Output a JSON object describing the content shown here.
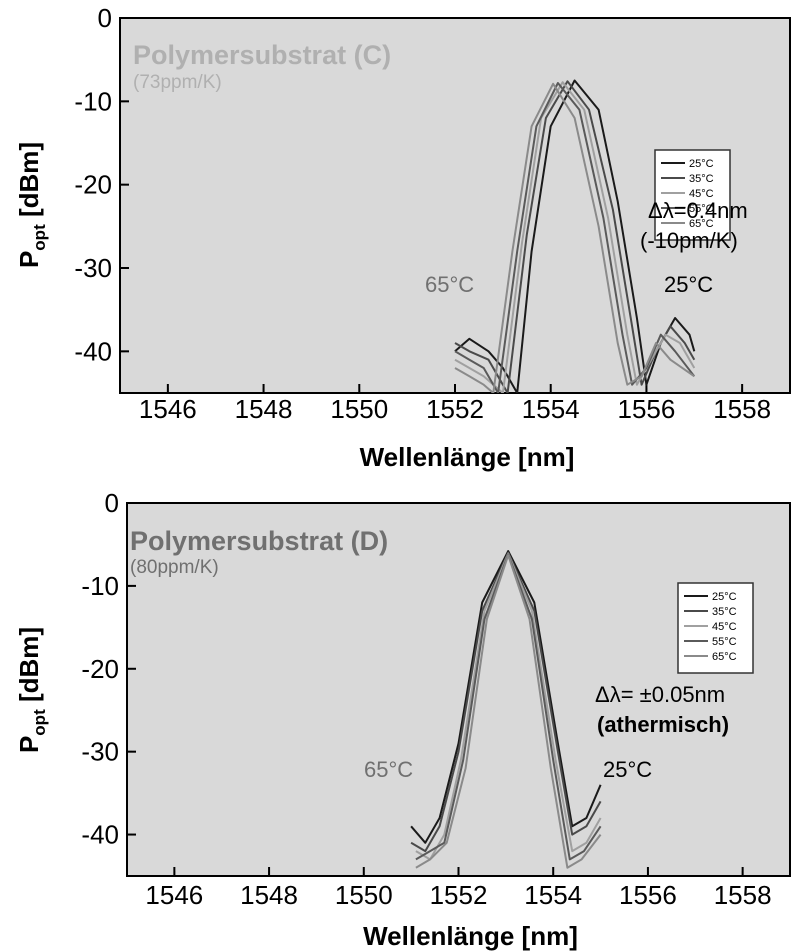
{
  "chart_data": [
    {
      "type": "line",
      "title": "Polymersubstrat (C)",
      "subtitle": "(73ppm/K)",
      "xlabel": "Wellenlänge [nm]",
      "ylabel_main": "P",
      "ylabel_sub": "opt",
      "ylabel_unit": " [dBm]",
      "xlim": [
        1545,
        1559
      ],
      "ylim": [
        -45,
        0
      ],
      "xticks": [
        1546,
        1548,
        1550,
        1552,
        1554,
        1556,
        1558
      ],
      "yticks": [
        0,
        -10,
        -20,
        -30,
        -40
      ],
      "legend_position": "top-right",
      "colors": {
        "plot_bg": "#d9d9d9",
        "title": "#b0b0b0",
        "annotation_left": "#707070",
        "annotation_right": "#000000"
      },
      "annotations": {
        "shift": "Δλ=0.4nm",
        "rate": "(-10pm/K)",
        "rate_bold": false,
        "left_temp": "65°C",
        "right_temp": "25°C"
      },
      "series": [
        {
          "name": "25°C",
          "color": "#1a1a1a",
          "points": [
            [
              1552.0,
              -40
            ],
            [
              1552.3,
              -38.5
            ],
            [
              1552.7,
              -40
            ],
            [
              1553.0,
              -42
            ],
            [
              1553.3,
              -45
            ],
            [
              1553.6,
              -28
            ],
            [
              1554.0,
              -13
            ],
            [
              1554.5,
              -7.5
            ],
            [
              1555.0,
              -11
            ],
            [
              1555.4,
              -22
            ],
            [
              1555.8,
              -36
            ],
            [
              1556.0,
              -44
            ],
            [
              1556.3,
              -39
            ],
            [
              1556.6,
              -36
            ],
            [
              1556.9,
              -38
            ],
            [
              1557.0,
              -40
            ]
          ]
        },
        {
          "name": "35°C",
          "color": "#4a4a4a",
          "points": [
            [
              1552.0,
              -39
            ],
            [
              1552.3,
              -40
            ],
            [
              1552.7,
              -41
            ],
            [
              1553.1,
              -45
            ],
            [
              1553.5,
              -26
            ],
            [
              1553.9,
              -12
            ],
            [
              1554.35,
              -7.6
            ],
            [
              1554.8,
              -11
            ],
            [
              1555.3,
              -23
            ],
            [
              1555.7,
              -37
            ],
            [
              1555.9,
              -44
            ],
            [
              1556.2,
              -40
            ],
            [
              1556.5,
              -37
            ],
            [
              1556.8,
              -39
            ],
            [
              1557.0,
              -41
            ]
          ]
        },
        {
          "name": "45°C",
          "color": "#a0a0a0",
          "points": [
            [
              1552.0,
              -41
            ],
            [
              1552.3,
              -42
            ],
            [
              1552.6,
              -43
            ],
            [
              1553.0,
              -45
            ],
            [
              1553.4,
              -27
            ],
            [
              1553.8,
              -12
            ],
            [
              1554.25,
              -7.7
            ],
            [
              1554.7,
              -11
            ],
            [
              1555.2,
              -24
            ],
            [
              1555.6,
              -38
            ],
            [
              1555.8,
              -44
            ],
            [
              1556.1,
              -41
            ],
            [
              1556.4,
              -38
            ],
            [
              1556.7,
              -39
            ],
            [
              1557.0,
              -42
            ]
          ]
        },
        {
          "name": "55°C",
          "color": "#5a5a5a",
          "points": [
            [
              1552.0,
              -40
            ],
            [
              1552.3,
              -41
            ],
            [
              1552.6,
              -42
            ],
            [
              1552.9,
              -45
            ],
            [
              1553.3,
              -28
            ],
            [
              1553.7,
              -13
            ],
            [
              1554.15,
              -7.8
            ],
            [
              1554.6,
              -11
            ],
            [
              1555.1,
              -24
            ],
            [
              1555.5,
              -38
            ],
            [
              1555.7,
              -44
            ],
            [
              1556.0,
              -42
            ],
            [
              1556.3,
              -38
            ],
            [
              1556.6,
              -40
            ],
            [
              1557.0,
              -43
            ]
          ]
        },
        {
          "name": "65°C",
          "color": "#8a8a8a",
          "points": [
            [
              1552.0,
              -42
            ],
            [
              1552.3,
              -43
            ],
            [
              1552.6,
              -44
            ],
            [
              1552.8,
              -45
            ],
            [
              1553.2,
              -28
            ],
            [
              1553.6,
              -13
            ],
            [
              1554.05,
              -7.9
            ],
            [
              1554.5,
              -12
            ],
            [
              1555.0,
              -25
            ],
            [
              1555.4,
              -39
            ],
            [
              1555.6,
              -44
            ],
            [
              1555.9,
              -43
            ],
            [
              1556.2,
              -39
            ],
            [
              1556.5,
              -41
            ],
            [
              1557.0,
              -43
            ]
          ]
        }
      ]
    },
    {
      "type": "line",
      "title": "Polymersubstrat (D)",
      "subtitle": "(80ppm/K)",
      "xlabel": "Wellenlänge [nm]",
      "ylabel_main": "P",
      "ylabel_sub": "opt",
      "ylabel_unit": " [dBm]",
      "xlim": [
        1545,
        1559
      ],
      "ylim": [
        -45,
        0
      ],
      "xticks": [
        1546,
        1548,
        1550,
        1552,
        1554,
        1556,
        1558
      ],
      "yticks": [
        0,
        -10,
        -20,
        -30,
        -40
      ],
      "legend_position": "top-right",
      "colors": {
        "plot_bg": "#d9d9d9",
        "title": "#707070",
        "annotation_left": "#707070",
        "annotation_right": "#000000"
      },
      "annotations": {
        "shift": "Δλ= ±0.05nm",
        "rate": "(athermisch)",
        "rate_bold": true,
        "left_temp": "65°C",
        "right_temp": "25°C"
      },
      "series": [
        {
          "name": "25°C",
          "color": "#1a1a1a",
          "points": [
            [
              1551.0,
              -39
            ],
            [
              1551.3,
              -41
            ],
            [
              1551.6,
              -38
            ],
            [
              1552.0,
              -29
            ],
            [
              1552.5,
              -12
            ],
            [
              1553.05,
              -5.8
            ],
            [
              1553.6,
              -12
            ],
            [
              1554.1,
              -29
            ],
            [
              1554.4,
              -39
            ],
            [
              1554.7,
              -38
            ],
            [
              1555.0,
              -34
            ]
          ]
        },
        {
          "name": "35°C",
          "color": "#4a4a4a",
          "points": [
            [
              1551.0,
              -41
            ],
            [
              1551.3,
              -42
            ],
            [
              1551.6,
              -39
            ],
            [
              1552.0,
              -30
            ],
            [
              1552.5,
              -13
            ],
            [
              1553.05,
              -6
            ],
            [
              1553.6,
              -13
            ],
            [
              1554.1,
              -30
            ],
            [
              1554.4,
              -40
            ],
            [
              1554.7,
              -39
            ],
            [
              1555.0,
              -36
            ]
          ]
        },
        {
          "name": "45°C",
          "color": "#a0a0a0",
          "points": [
            [
              1551.1,
              -42
            ],
            [
              1551.4,
              -43
            ],
            [
              1551.7,
              -40
            ],
            [
              1552.05,
              -31
            ],
            [
              1552.55,
              -13
            ],
            [
              1553.05,
              -6.1
            ],
            [
              1553.55,
              -13
            ],
            [
              1554.05,
              -31
            ],
            [
              1554.4,
              -42
            ],
            [
              1554.7,
              -41
            ],
            [
              1555.0,
              -38
            ]
          ]
        },
        {
          "name": "55°C",
          "color": "#5a5a5a",
          "points": [
            [
              1551.1,
              -43
            ],
            [
              1551.4,
              -42
            ],
            [
              1551.7,
              -41
            ],
            [
              1552.1,
              -31
            ],
            [
              1552.55,
              -14
            ],
            [
              1553.05,
              -6.2
            ],
            [
              1553.55,
              -14
            ],
            [
              1554.0,
              -31
            ],
            [
              1554.35,
              -43
            ],
            [
              1554.65,
              -42
            ],
            [
              1555.0,
              -39
            ]
          ]
        },
        {
          "name": "65°C",
          "color": "#8a8a8a",
          "points": [
            [
              1551.1,
              -44
            ],
            [
              1551.4,
              -43
            ],
            [
              1551.75,
              -41
            ],
            [
              1552.15,
              -32
            ],
            [
              1552.6,
              -14
            ],
            [
              1553.05,
              -6.3
            ],
            [
              1553.5,
              -14
            ],
            [
              1553.95,
              -32
            ],
            [
              1554.3,
              -44
            ],
            [
              1554.6,
              -43
            ],
            [
              1555.0,
              -40
            ]
          ]
        }
      ]
    }
  ]
}
